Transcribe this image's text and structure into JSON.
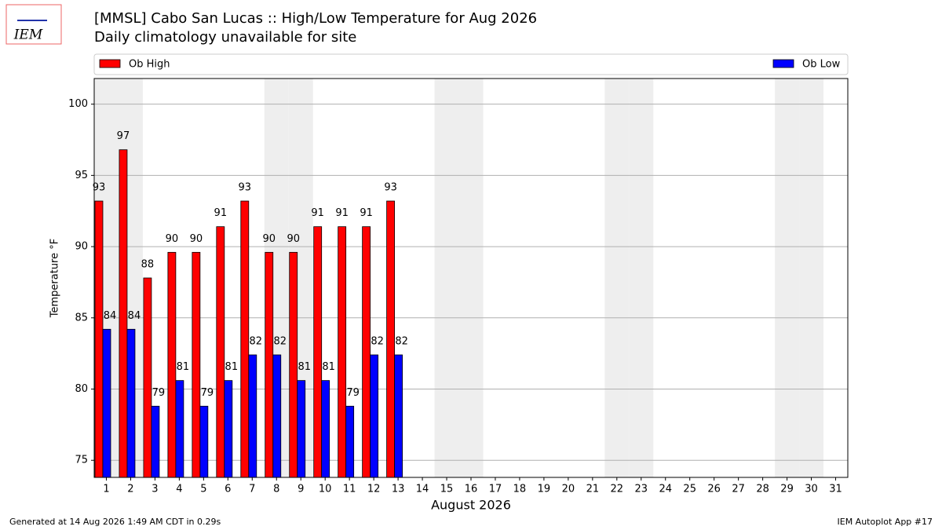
{
  "chart_data": {
    "type": "bar",
    "logo": "IEM",
    "title": "[MMSL] Cabo San Lucas :: High/Low Temperature for Aug 2026",
    "subtitle": "Daily climatology unavailable for site",
    "xlabel": "August 2026",
    "ylabel": "Temperature °F",
    "categories": [
      1,
      2,
      3,
      4,
      5,
      6,
      7,
      8,
      9,
      10,
      11,
      12,
      13,
      14,
      15,
      16,
      17,
      18,
      19,
      20,
      21,
      22,
      23,
      24,
      25,
      26,
      27,
      28,
      29,
      30,
      31
    ],
    "series": [
      {
        "name": "Ob High",
        "color": "#ff0000",
        "values": [
          93.2,
          96.8,
          87.8,
          89.6,
          89.6,
          91.4,
          93.2,
          89.6,
          89.6,
          91.4,
          91.4,
          91.4,
          93.2,
          null,
          null,
          null,
          null,
          null,
          null,
          null,
          null,
          null,
          null,
          null,
          null,
          null,
          null,
          null,
          null,
          null,
          null
        ],
        "value_labels": [
          "93",
          "97",
          "88",
          "90",
          "90",
          "91",
          "93",
          "90",
          "90",
          "91",
          "91",
          "91",
          "93",
          null,
          null,
          null,
          null,
          null,
          null,
          null,
          null,
          null,
          null,
          null,
          null,
          null,
          null,
          null,
          null,
          null,
          null
        ]
      },
      {
        "name": "Ob Low",
        "color": "#0000ff",
        "values": [
          84.2,
          84.2,
          78.8,
          80.6,
          78.8,
          80.6,
          82.4,
          82.4,
          80.6,
          80.6,
          78.8,
          82.4,
          82.4,
          null,
          null,
          null,
          null,
          null,
          null,
          null,
          null,
          null,
          null,
          null,
          null,
          null,
          null,
          null,
          null,
          null,
          null
        ],
        "value_labels": [
          "84",
          "84",
          "79",
          "81",
          "79",
          "81",
          "82",
          "82",
          "81",
          "81",
          "79",
          "82",
          "82",
          null,
          null,
          null,
          null,
          null,
          null,
          null,
          null,
          null,
          null,
          null,
          null,
          null,
          null,
          null,
          null,
          null,
          null
        ]
      }
    ],
    "ylim": [
      73.8,
      101.8
    ],
    "yticks": [
      75,
      80,
      85,
      90,
      95,
      100
    ],
    "grid": true,
    "footer_left": "Generated at 14 Aug 2026 1:49 AM CDT in 0.29s",
    "footer_right": "IEM Autoplot App #17"
  }
}
